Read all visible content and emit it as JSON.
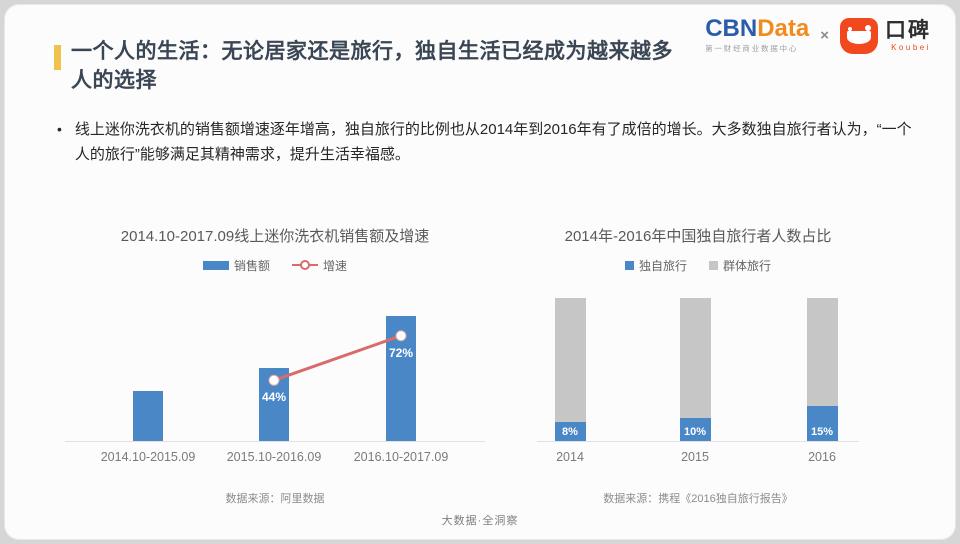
{
  "header": {
    "title_line1": "一个人的生活：无论居家还是旅行，独自生活已经成为越来越多",
    "title_line2": "人的选择",
    "accent_color": "#EFC24B"
  },
  "logos": {
    "cbn": {
      "part1": "CBN",
      "part2": "Data",
      "subtitle": "第一财经商业数据中心",
      "color_part1": "#2A5CAA",
      "color_part2": "#F28B1D"
    },
    "separator": "×",
    "koubei": {
      "name": "口碑",
      "latin": "Koubei",
      "brand_color": "#F1481E"
    }
  },
  "bullet": {
    "marker": "•",
    "text": "线上迷你洗衣机的销售额增速逐年增高，独自旅行的比例也从2014年到2016年有了成倍的增长。大多数独自旅行者认为，“一个人的旅行”能够满足其精神需求，提升生活幸福感。"
  },
  "chart_data": [
    {
      "type": "bar",
      "title": "2014.10-2017.09线上迷你洗衣机销售额及增速",
      "categories": [
        "2014.10-2015.09",
        "2015.10-2016.09",
        "2016.10-2017.09"
      ],
      "series": [
        {
          "name": "销售额",
          "type": "bar",
          "values_relative_index": [
            100,
            144,
            248
          ],
          "color": "#4A87C7"
        },
        {
          "name": "增速",
          "type": "line",
          "values_percent": [
            null,
            44,
            72
          ],
          "labels": [
            "",
            "44%",
            "72%"
          ],
          "color": "#D96B6B",
          "marker_fill": "#FFFFFF"
        }
      ],
      "legend_position": "top",
      "y_axis_visible": false,
      "source": "数据来源：阿里数据"
    },
    {
      "type": "bar-stacked",
      "title": "2014年-2016年中国独自旅行者人数占比",
      "categories": [
        "2014",
        "2015",
        "2016"
      ],
      "series": [
        {
          "name": "独自旅行",
          "values_percent": [
            8,
            10,
            15
          ],
          "labels": [
            "8%",
            "10%",
            "15%"
          ],
          "color": "#4A87C7"
        },
        {
          "name": "群体旅行",
          "values_percent": [
            92,
            90,
            85
          ],
          "color": "#C6C6C6"
        }
      ],
      "legend_position": "top",
      "y_axis_visible": false,
      "source": "数据来源：携程《2016独自旅行报告》"
    }
  ],
  "footer": {
    "text": "大数据·全洞察"
  }
}
